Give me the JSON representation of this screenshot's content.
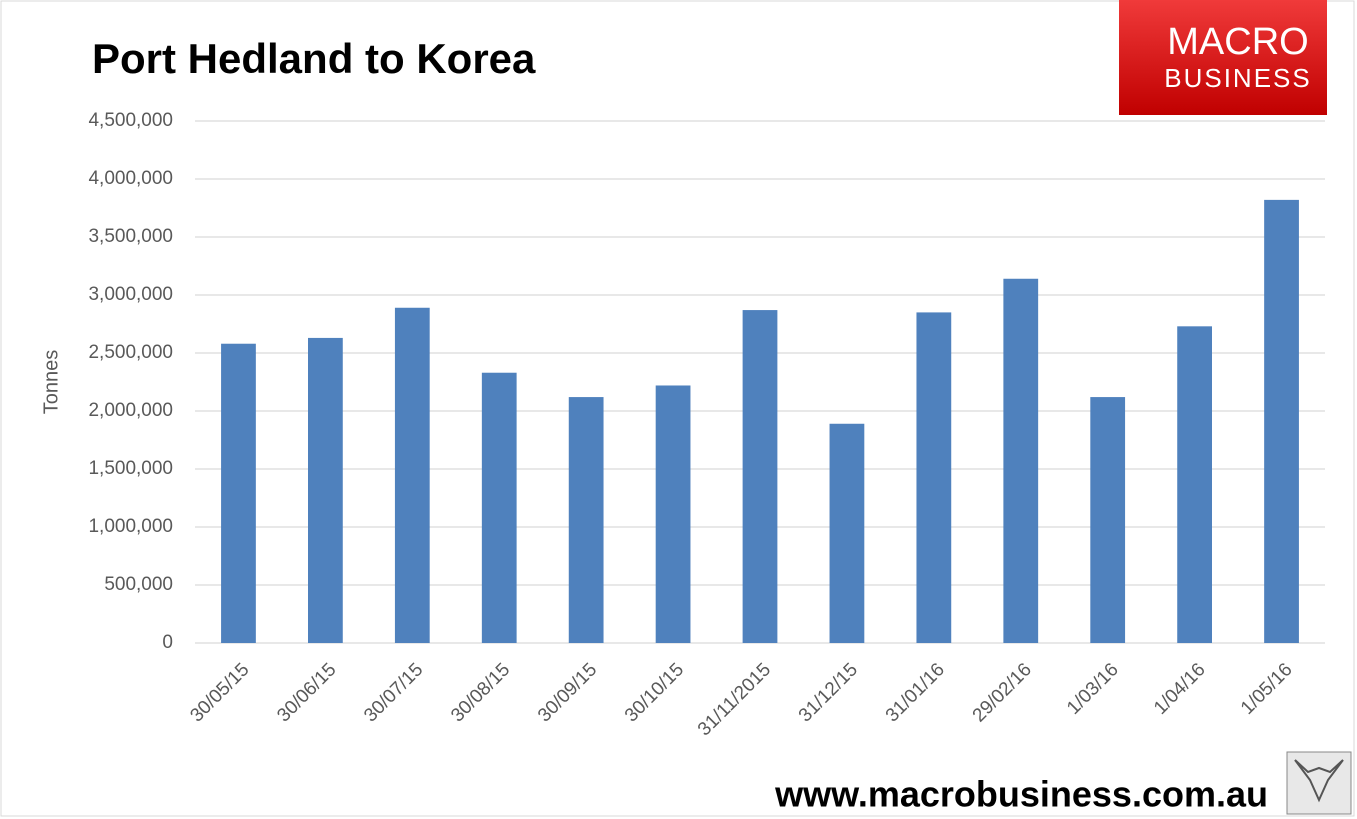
{
  "chart_data": {
    "type": "bar",
    "title": "Port Hedland to Korea",
    "y_label": "Tonnes",
    "categories": [
      "30/05/15",
      "30/06/15",
      "30/07/15",
      "30/08/15",
      "30/09/15",
      "30/10/15",
      "31/11/2015",
      "31/12/15",
      "31/01/16",
      "29/02/16",
      "1/03/16",
      "1/04/16",
      "1/05/16"
    ],
    "values": [
      2580000,
      2630000,
      2890000,
      2330000,
      2120000,
      2220000,
      2870000,
      1890000,
      2850000,
      3140000,
      2120000,
      2730000,
      3820000
    ],
    "color": "#4f81bd",
    "ylim": [
      0,
      4500000
    ],
    "yticks": [
      0,
      {
        "value": 500000,
        "label": "500,000"
      },
      {
        "value": 1000000,
        "label": "1,000,000"
      },
      {
        "value": 1500000,
        "label": "1,500,000"
      },
      {
        "value": 2000000,
        "label": "2,000,000"
      },
      {
        "value": 2500000,
        "label": "2,500,000"
      },
      {
        "value": 3000000,
        "label": "3,000,000"
      },
      {
        "value": 3500000,
        "label": "3,500,000"
      },
      {
        "value": 4000000,
        "label": "4,000,000"
      },
      {
        "value": 4500000,
        "label": "4,500,000"
      }
    ],
    "grid": true
  },
  "branding": {
    "logo_top": "MACRO",
    "logo_bottom": "BUSINESS",
    "website": "www.macrobusiness.com.au"
  }
}
